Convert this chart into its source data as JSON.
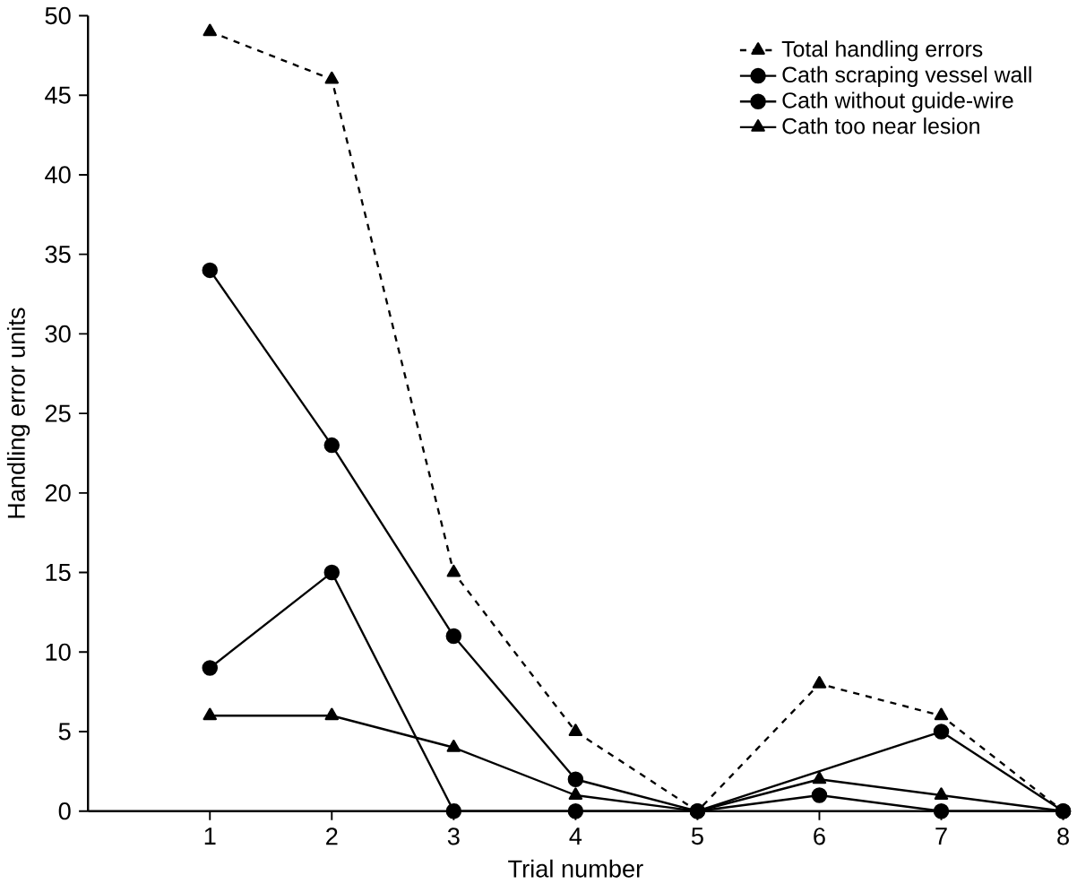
{
  "chart_data": {
    "type": "line",
    "xlabel": "Trial number",
    "ylabel": "Handling error units",
    "x": [
      1,
      2,
      3,
      4,
      5,
      6,
      7,
      8
    ],
    "xlim": [
      0,
      8
    ],
    "xticks": [
      1,
      2,
      3,
      4,
      5,
      6,
      7,
      8
    ],
    "ylim": [
      0,
      50
    ],
    "yticks": [
      0,
      5,
      10,
      15,
      20,
      25,
      30,
      35,
      40,
      45,
      50
    ],
    "grid": false,
    "legend": "top right",
    "series": [
      {
        "name": "Total handling errors",
        "color": "#000000",
        "marker": "triangle",
        "line_style": "dashed",
        "values": [
          49,
          46,
          15,
          5,
          0,
          8,
          6,
          0
        ]
      },
      {
        "name": "Cath scraping vessel wall",
        "color": "#000000",
        "marker": "circle",
        "line_style": "solid",
        "values": [
          34,
          23,
          11,
          2,
          0,
          null,
          5,
          0
        ]
      },
      {
        "name": "Cath without guide-wire",
        "color": "#000000",
        "marker": "circle",
        "line_style": "solid",
        "values": [
          9,
          15,
          0,
          0,
          0,
          1,
          0,
          0
        ]
      },
      {
        "name": "Cath too near lesion",
        "color": "#000000",
        "marker": "triangle",
        "line_style": "solid",
        "values": [
          6,
          6,
          4,
          1,
          0,
          2,
          1,
          0
        ]
      }
    ]
  }
}
